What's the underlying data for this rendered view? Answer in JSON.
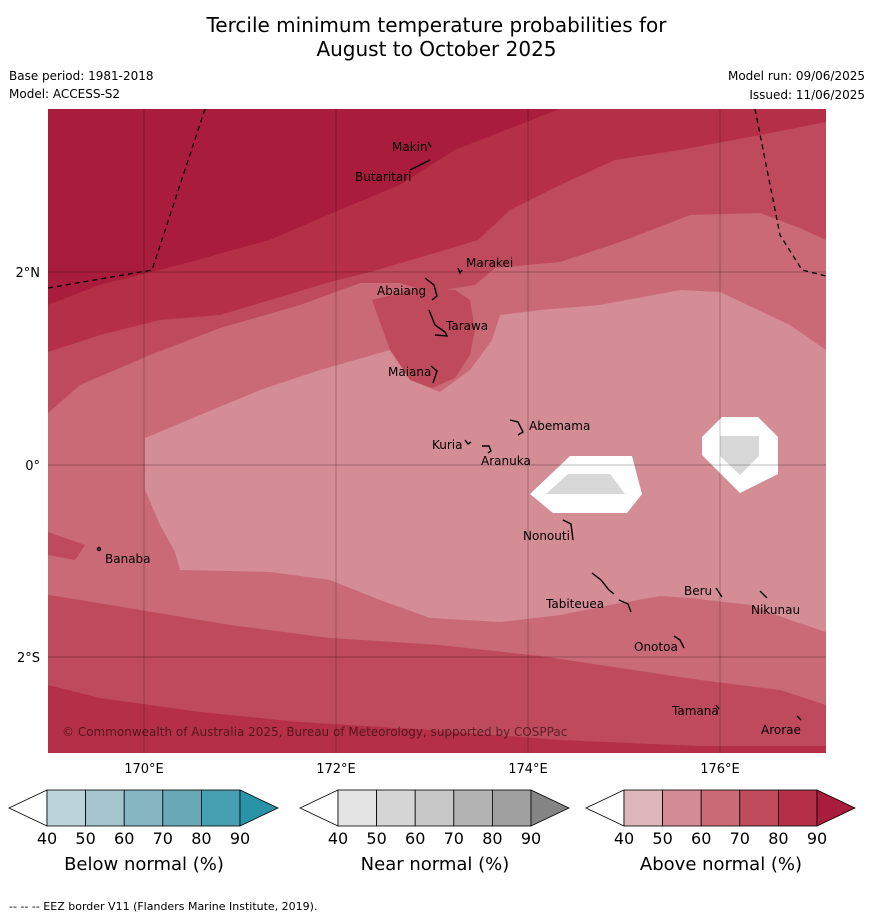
{
  "header": {
    "title_line1": "Tercile minimum temperature probabilities for",
    "title_line2": "August to October 2025",
    "base_period": "Base period: 1981-2018",
    "model": "Model: ACCESS-S2",
    "model_run": "Model run: 09/06/2025",
    "issued": "Issued: 11/06/2025"
  },
  "map": {
    "lat_labels": [
      "2°N",
      "0°",
      "2°S"
    ],
    "lon_labels": [
      "170°E",
      "172°E",
      "174°E",
      "176°E"
    ],
    "copyright": "© Commonwealth of Australia 2025, Bureau of Meteorology, supported by COSPPac",
    "islands": [
      "Makin",
      "Butaritari",
      "Marakei",
      "Abaiang",
      "Tarawa",
      "Maiana",
      "Abemama",
      "Kuria",
      "Aranuka",
      "Nonouti",
      "Banaba",
      "Tabiteuea",
      "Beru",
      "Nikunau",
      "Onotoa",
      "Tamana",
      "Arorae"
    ],
    "colors": {
      "above_40": "#dfb6bc",
      "above_50": "#d48c95",
      "above_60": "#c96a76",
      "above_70": "#bf4a5b",
      "above_80": "#b53046",
      "above_90": "#a91c3b",
      "near_50": "#d8d8d8"
    }
  },
  "colorbars": [
    {
      "title": "Below normal (%)",
      "ticks": [
        "40",
        "50",
        "60",
        "70",
        "80",
        "90"
      ],
      "colors": [
        "#ffffff",
        "#bcd3db",
        "#a4c5ce",
        "#86b6c2",
        "#69a9b7",
        "#47a0b1",
        "#2a93a8"
      ]
    },
    {
      "title": "Near normal (%)",
      "ticks": [
        "40",
        "50",
        "60",
        "70",
        "80",
        "90"
      ],
      "colors": [
        "#ffffff",
        "#e4e4e4",
        "#d6d6d6",
        "#c7c7c7",
        "#b3b3b3",
        "#a0a0a0",
        "#848484"
      ]
    },
    {
      "title": "Above normal (%)",
      "ticks": [
        "40",
        "50",
        "60",
        "70",
        "80",
        "90"
      ],
      "colors": [
        "#ffffff",
        "#dfb6bc",
        "#d48c95",
        "#c96a76",
        "#bf4a5b",
        "#b53046",
        "#a91c3b"
      ]
    }
  ],
  "footer": {
    "eez_note": "--  --  -- EEZ border V11 (Flanders Marine Institute, 2019)."
  }
}
